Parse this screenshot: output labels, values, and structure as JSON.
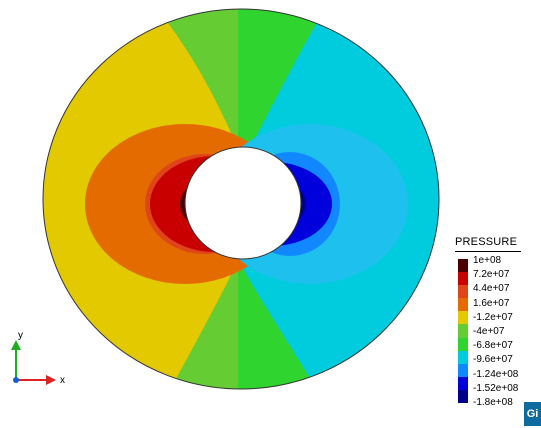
{
  "legend": {
    "title": "PRESSURE",
    "entries": [
      {
        "label": "1e+08",
        "color": "#4b0000"
      },
      {
        "label": "7.2e+07",
        "color": "#c80000"
      },
      {
        "label": "4.4e+07",
        "color": "#e0451a"
      },
      {
        "label": "1.6e+07",
        "color": "#e36b00"
      },
      {
        "label": "-1.2e+07",
        "color": "#e3c900"
      },
      {
        "label": "-4e+07",
        "color": "#66cc33"
      },
      {
        "label": "-6.8e+07",
        "color": "#2fd42f"
      },
      {
        "label": "-9.6e+07",
        "color": "#00ccdd"
      },
      {
        "label": "-1.24e+08",
        "color": "#1188ff"
      },
      {
        "label": "-1.52e+08",
        "color": "#0000dd"
      },
      {
        "label": "-1.8e+08",
        "color": "#00008a"
      }
    ]
  },
  "axes": {
    "x_label": "x",
    "y_label": "y"
  },
  "badge": {
    "text": "Gi"
  }
}
